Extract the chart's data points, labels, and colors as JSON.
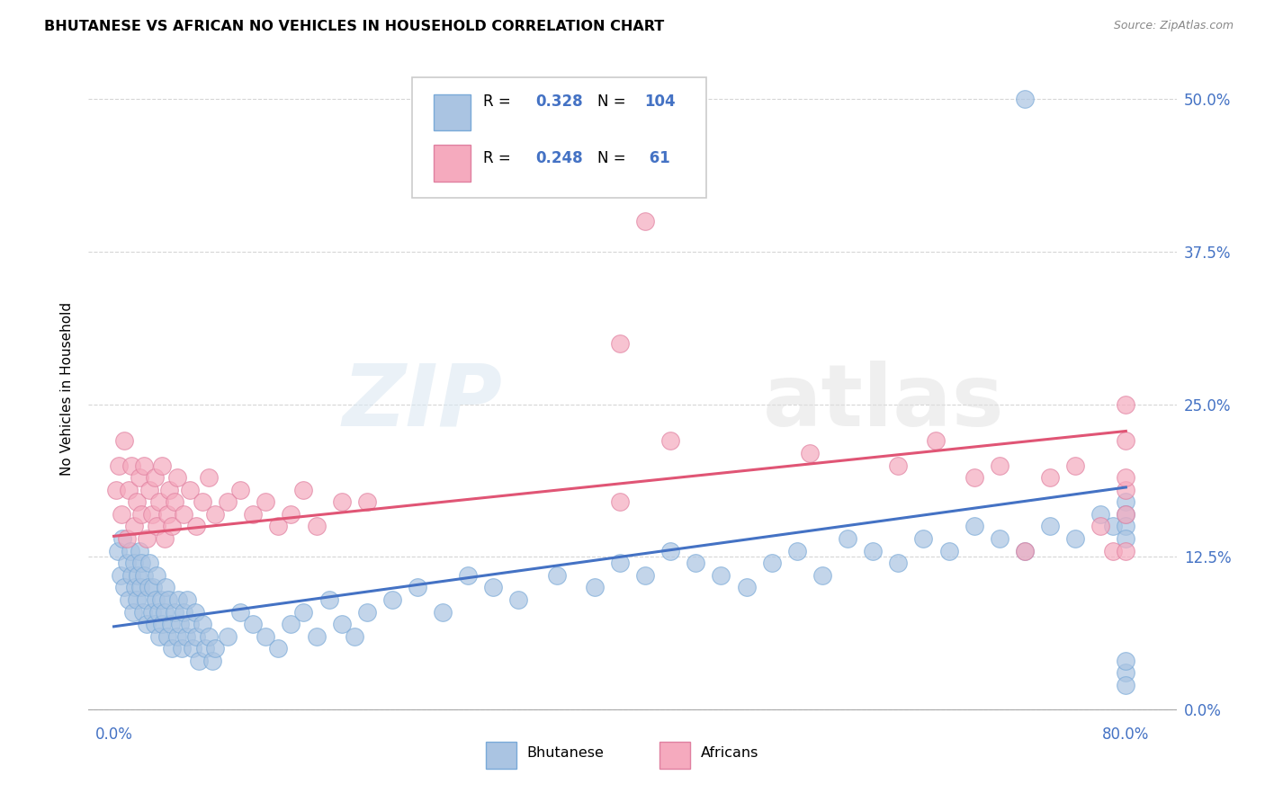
{
  "title": "BHUTANESE VS AFRICAN NO VEHICLES IN HOUSEHOLD CORRELATION CHART",
  "source": "Source: ZipAtlas.com",
  "ylabel": "No Vehicles in Household",
  "yticks": [
    "0.0%",
    "12.5%",
    "25.0%",
    "37.5%",
    "50.0%"
  ],
  "ytick_vals": [
    0.0,
    0.125,
    0.25,
    0.375,
    0.5
  ],
  "xlim": [
    0.0,
    0.8
  ],
  "ylim": [
    0.0,
    0.52
  ],
  "bhutanese_color": "#aac4e2",
  "africans_color": "#f5aabe",
  "bhutanese_line_color": "#4472c4",
  "africans_line_color": "#e05575",
  "bhutanese_R": 0.328,
  "bhutanese_N": 104,
  "africans_R": 0.248,
  "africans_N": 61,
  "blue_line_y0": 0.068,
  "blue_line_y1": 0.182,
  "pink_line_y0": 0.142,
  "pink_line_y1": 0.228,
  "bhutanese_x": [
    0.003,
    0.005,
    0.007,
    0.008,
    0.01,
    0.012,
    0.013,
    0.014,
    0.015,
    0.016,
    0.017,
    0.018,
    0.019,
    0.02,
    0.021,
    0.022,
    0.023,
    0.024,
    0.025,
    0.026,
    0.027,
    0.028,
    0.03,
    0.031,
    0.032,
    0.033,
    0.034,
    0.035,
    0.036,
    0.037,
    0.038,
    0.04,
    0.041,
    0.042,
    0.043,
    0.045,
    0.046,
    0.048,
    0.05,
    0.051,
    0.052,
    0.054,
    0.055,
    0.057,
    0.058,
    0.06,
    0.062,
    0.064,
    0.065,
    0.067,
    0.07,
    0.072,
    0.075,
    0.078,
    0.08,
    0.09,
    0.1,
    0.11,
    0.12,
    0.13,
    0.14,
    0.15,
    0.16,
    0.17,
    0.18,
    0.19,
    0.2,
    0.22,
    0.24,
    0.26,
    0.28,
    0.3,
    0.32,
    0.35,
    0.38,
    0.4,
    0.42,
    0.44,
    0.46,
    0.48,
    0.5,
    0.52,
    0.54,
    0.56,
    0.58,
    0.6,
    0.62,
    0.64,
    0.66,
    0.68,
    0.7,
    0.72,
    0.74,
    0.76,
    0.78,
    0.79,
    0.8,
    0.8,
    0.8,
    0.8,
    0.8,
    0.8,
    0.8,
    0.72
  ],
  "bhutanese_y": [
    0.13,
    0.11,
    0.14,
    0.1,
    0.12,
    0.09,
    0.13,
    0.11,
    0.08,
    0.12,
    0.1,
    0.09,
    0.11,
    0.13,
    0.1,
    0.12,
    0.08,
    0.11,
    0.09,
    0.07,
    0.1,
    0.12,
    0.08,
    0.1,
    0.07,
    0.09,
    0.11,
    0.08,
    0.06,
    0.09,
    0.07,
    0.08,
    0.1,
    0.06,
    0.09,
    0.07,
    0.05,
    0.08,
    0.06,
    0.09,
    0.07,
    0.05,
    0.08,
    0.06,
    0.09,
    0.07,
    0.05,
    0.08,
    0.06,
    0.04,
    0.07,
    0.05,
    0.06,
    0.04,
    0.05,
    0.06,
    0.08,
    0.07,
    0.06,
    0.05,
    0.07,
    0.08,
    0.06,
    0.09,
    0.07,
    0.06,
    0.08,
    0.09,
    0.1,
    0.08,
    0.11,
    0.1,
    0.09,
    0.11,
    0.1,
    0.12,
    0.11,
    0.13,
    0.12,
    0.11,
    0.1,
    0.12,
    0.13,
    0.11,
    0.14,
    0.13,
    0.12,
    0.14,
    0.13,
    0.15,
    0.14,
    0.13,
    0.15,
    0.14,
    0.16,
    0.15,
    0.17,
    0.16,
    0.15,
    0.14,
    0.03,
    0.02,
    0.04,
    0.5
  ],
  "africans_x": [
    0.002,
    0.004,
    0.006,
    0.008,
    0.01,
    0.012,
    0.014,
    0.016,
    0.018,
    0.02,
    0.022,
    0.024,
    0.026,
    0.028,
    0.03,
    0.032,
    0.034,
    0.036,
    0.038,
    0.04,
    0.042,
    0.044,
    0.046,
    0.048,
    0.05,
    0.055,
    0.06,
    0.065,
    0.07,
    0.075,
    0.08,
    0.09,
    0.1,
    0.11,
    0.12,
    0.13,
    0.14,
    0.15,
    0.16,
    0.18,
    0.2,
    0.4,
    0.42,
    0.44,
    0.55,
    0.62,
    0.65,
    0.68,
    0.7,
    0.72,
    0.74,
    0.76,
    0.78,
    0.79,
    0.8,
    0.8,
    0.8,
    0.8,
    0.8,
    0.8,
    0.4
  ],
  "africans_y": [
    0.18,
    0.2,
    0.16,
    0.22,
    0.14,
    0.18,
    0.2,
    0.15,
    0.17,
    0.19,
    0.16,
    0.2,
    0.14,
    0.18,
    0.16,
    0.19,
    0.15,
    0.17,
    0.2,
    0.14,
    0.16,
    0.18,
    0.15,
    0.17,
    0.19,
    0.16,
    0.18,
    0.15,
    0.17,
    0.19,
    0.16,
    0.17,
    0.18,
    0.16,
    0.17,
    0.15,
    0.16,
    0.18,
    0.15,
    0.17,
    0.17,
    0.17,
    0.4,
    0.22,
    0.21,
    0.2,
    0.22,
    0.19,
    0.2,
    0.13,
    0.19,
    0.2,
    0.15,
    0.13,
    0.22,
    0.16,
    0.18,
    0.19,
    0.25,
    0.13,
    0.3
  ]
}
